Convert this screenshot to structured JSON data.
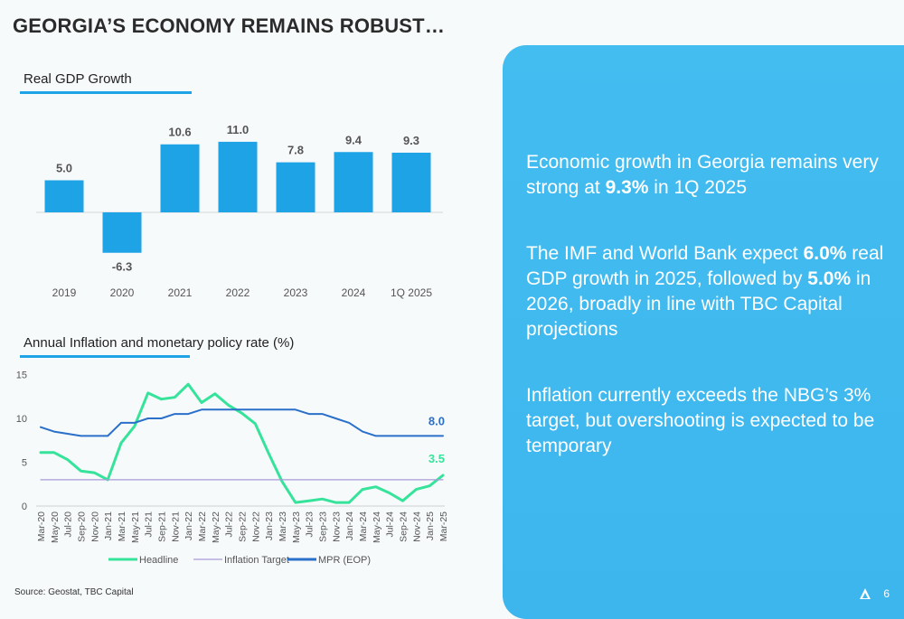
{
  "slide": {
    "title": "GEORGIA’S ECONOMY REMAINS ROBUST…",
    "source": "Source: Geostat, TBC Capital",
    "page_number": "6"
  },
  "gdp_section": {
    "title": "Real GDP Growth"
  },
  "inflation_section": {
    "title": "Annual Inflation and monetary policy rate (%)"
  },
  "panel": {
    "paragraphs": [
      {
        "parts": [
          {
            "text": "Economic growth in Georgia remains very strong at ",
            "bold": false
          },
          {
            "text": "9.3%",
            "bold": true
          },
          {
            "text": " in 1Q 2025",
            "bold": false
          }
        ]
      },
      {
        "parts": [
          {
            "text": "The IMF and World Bank expect ",
            "bold": false
          },
          {
            "text": "6.0%",
            "bold": true
          },
          {
            "text": " real GDP growth in 2025, followed by ",
            "bold": false
          },
          {
            "text": "5.0%",
            "bold": true
          },
          {
            "text": " in 2026, broadly in line with TBC Capital projections",
            "bold": false
          }
        ]
      },
      {
        "parts": [
          {
            "text": "Inflation currently exceeds the NBG’s 3% target, but overshooting is expected to be temporary",
            "bold": false
          }
        ]
      }
    ]
  },
  "colors": {
    "bar": "#1ea3e6",
    "headline": "#35e39a",
    "target": "#a89ad8",
    "mpr": "#2a6fc9",
    "panel": "#3cb6ed"
  },
  "chart_data": [
    {
      "type": "bar",
      "title": "Real GDP Growth",
      "categories": [
        "2019",
        "2020",
        "2021",
        "2022",
        "2023",
        "2024",
        "1Q 2025"
      ],
      "values": [
        5.0,
        -6.3,
        10.6,
        11.0,
        7.8,
        9.4,
        9.3
      ],
      "labels": [
        "5.0",
        "-6.3",
        "10.6",
        "11.0",
        "7.8",
        "9.4",
        "9.3"
      ],
      "grid": false
    },
    {
      "type": "line",
      "title": "Annual Inflation and monetary policy rate (%)",
      "ylim": [
        0,
        15
      ],
      "yticks": [
        0,
        5,
        10,
        15
      ],
      "x": [
        "Mar-20",
        "May-20",
        "Jul-20",
        "Sep-20",
        "Nov-20",
        "Jan-21",
        "Mar-21",
        "May-21",
        "Jul-21",
        "Sep-21",
        "Nov-21",
        "Jan-22",
        "Mar-22",
        "May-22",
        "Jul-22",
        "Sep-22",
        "Nov-22",
        "Jan-23",
        "Mar-23",
        "May-23",
        "Jul-23",
        "Sep-23",
        "Nov-23",
        "Jan-24",
        "Mar-24",
        "May-24",
        "Jul-24",
        "Sep-24",
        "Nov-24",
        "Jan-25",
        "Mar-25"
      ],
      "series": [
        {
          "name": "Headline",
          "values": [
            6.1,
            6.1,
            5.3,
            4.0,
            3.8,
            3.0,
            7.2,
            9.1,
            12.9,
            12.2,
            12.4,
            13.9,
            11.8,
            12.8,
            11.5,
            10.6,
            9.4,
            6.0,
            2.8,
            0.4,
            0.6,
            0.8,
            0.4,
            0.4,
            1.9,
            2.2,
            1.5,
            0.6,
            1.9,
            2.3,
            3.5
          ],
          "end_label": "3.5"
        },
        {
          "name": "Inflation Target",
          "values": [
            3.0,
            3.0,
            3.0,
            3.0,
            3.0,
            3.0,
            3.0,
            3.0,
            3.0,
            3.0,
            3.0,
            3.0,
            3.0,
            3.0,
            3.0,
            3.0,
            3.0,
            3.0,
            3.0,
            3.0,
            3.0,
            3.0,
            3.0,
            3.0,
            3.0,
            3.0,
            3.0,
            3.0,
            3.0,
            3.0,
            3.0
          ]
        },
        {
          "name": "MPR (EOP)",
          "values": [
            9.0,
            8.5,
            8.25,
            8.0,
            8.0,
            8.0,
            9.5,
            9.5,
            10.0,
            10.0,
            10.5,
            10.5,
            11.0,
            11.0,
            11.0,
            11.0,
            11.0,
            11.0,
            11.0,
            11.0,
            10.5,
            10.5,
            10.0,
            9.5,
            8.5,
            8.0,
            8.0,
            8.0,
            8.0,
            8.0,
            8.0
          ],
          "end_label": "8.0"
        }
      ],
      "legend_position": "bottom",
      "grid": false
    }
  ]
}
